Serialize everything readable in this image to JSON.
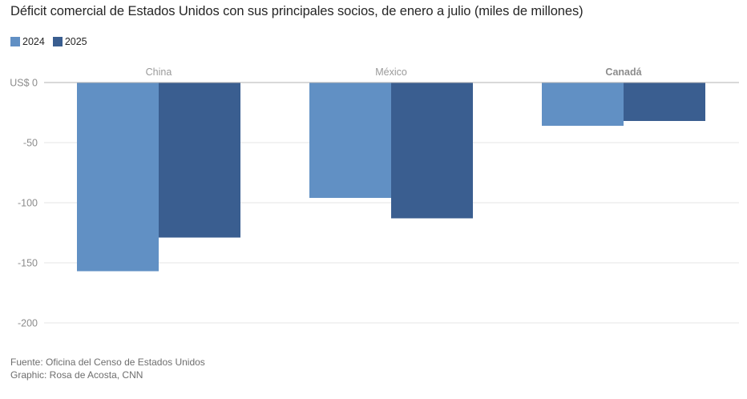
{
  "title": "Déficit comercial de Estados Unidos con sus principales socios, de enero a julio (miles de millones)",
  "legend": [
    {
      "label": "2024",
      "color": "#6190c4"
    },
    {
      "label": "2025",
      "color": "#3a5e90"
    }
  ],
  "footer": {
    "source": "Fuente: Oficina del Censo de Estados Unidos",
    "credit": "Graphic: Rosa de Acosta, CNN"
  },
  "chart_data": {
    "type": "bar",
    "title": "Déficit comercial de Estados Unidos con sus principales socios, de enero a julio (miles de millones)",
    "categories": [
      "China",
      "México",
      "Canadá"
    ],
    "series": [
      {
        "name": "2024",
        "color": "#6190c4",
        "values": [
          -157,
          -96,
          -36
        ]
      },
      {
        "name": "2025",
        "color": "#3a5e90",
        "values": [
          -129,
          -113,
          -32
        ]
      }
    ],
    "ylim": [
      -200,
      0
    ],
    "yticks": [
      {
        "value": 0,
        "label": "US$ 0"
      },
      {
        "value": -50,
        "label": "-50"
      },
      {
        "value": -100,
        "label": "-100"
      },
      {
        "value": -150,
        "label": "-150"
      },
      {
        "value": -200,
        "label": "-200"
      }
    ],
    "xlabel": "",
    "ylabel": "",
    "grid": true,
    "legend_position": "top-left"
  }
}
